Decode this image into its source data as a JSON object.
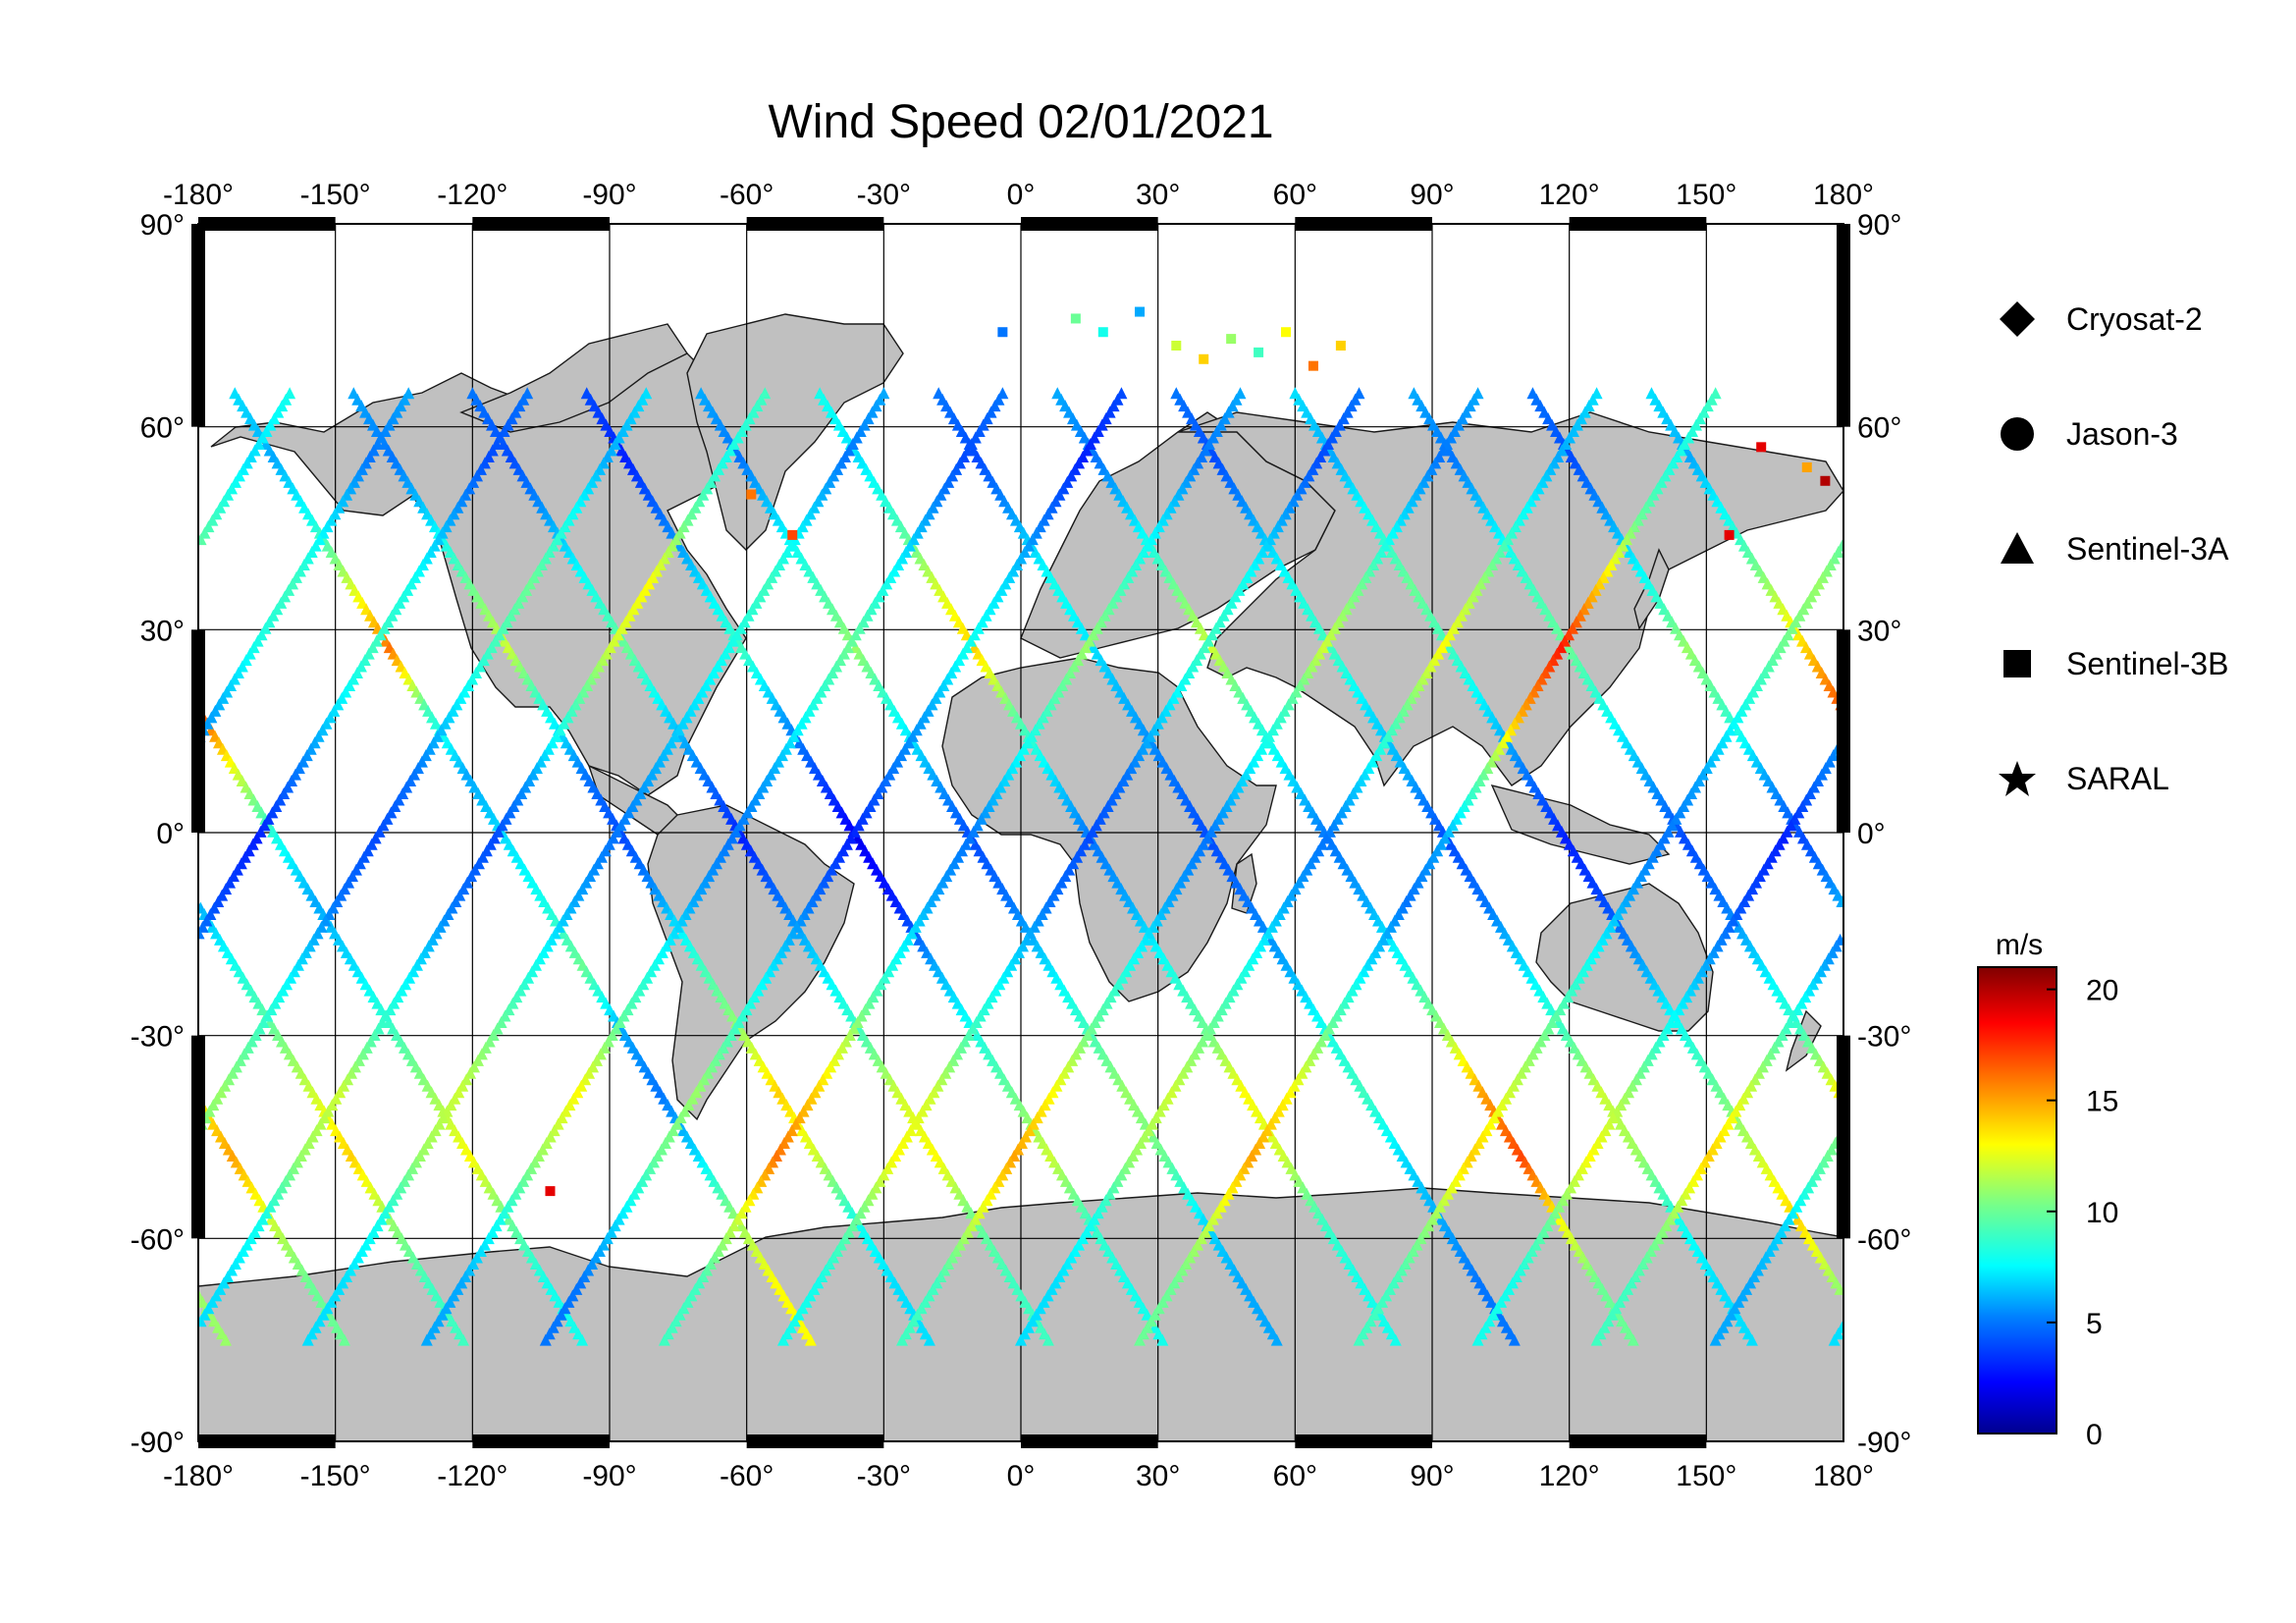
{
  "title": "Wind Speed 02/01/2021",
  "map": {
    "projection": "equirectangular",
    "lon_ticks": [
      "-180°",
      "-150°",
      "-120°",
      "-90°",
      "-60°",
      "-30°",
      "0°",
      "30°",
      "60°",
      "90°",
      "120°",
      "150°",
      "180°"
    ],
    "lat_ticks": [
      "90°",
      "60°",
      "30°",
      "0°",
      "-30°",
      "-60°",
      "-90°"
    ],
    "land_color": "#c0c0c0",
    "ocean_color": "#ffffff",
    "grid": true
  },
  "legend": {
    "items": [
      {
        "label": "Cryosat-2",
        "symbol": "diamond-icon"
      },
      {
        "label": "Jason-3",
        "symbol": "circle-icon"
      },
      {
        "label": "Sentinel-3A",
        "symbol": "triangle-icon"
      },
      {
        "label": "Sentinel-3B",
        "symbol": "square-icon"
      },
      {
        "label": "SARAL",
        "symbol": "star-icon"
      }
    ]
  },
  "colorbar": {
    "unit": "m/s",
    "min": 0,
    "max": 21,
    "ticks": [
      "20",
      "15",
      "10",
      "5",
      "0"
    ],
    "colormap": "jet",
    "colors": [
      "#00008f",
      "#0000ff",
      "#0080ff",
      "#00ffff",
      "#80ff80",
      "#ffff00",
      "#ff8000",
      "#ff0000",
      "#800000"
    ]
  },
  "chart_data": {
    "type": "scatter",
    "title": "Wind Speed 02/01/2021",
    "xlim": [
      -180,
      180
    ],
    "ylim": [
      -90,
      90
    ],
    "value_unit": "m/s",
    "series": [
      {
        "name": "Sentinel-3A",
        "marker": "triangle",
        "tracks": [
          {
            "lon0": -172,
            "dir": 1,
            "values": [
              7,
              6,
              8,
              12,
              16,
              9,
              6,
              7,
              8,
              10,
              6,
              5,
              7,
              11,
              13
            ]
          },
          {
            "lon0": -146,
            "dir": 1,
            "values": [
              6,
              5,
              7,
              10,
              12,
              8,
              5,
              4,
              6,
              9,
              11,
              14,
              12,
              8,
              7
            ]
          },
          {
            "lon0": -120,
            "dir": 1,
            "values": [
              5,
              4,
              6,
              8,
              10,
              7,
              5,
              3,
              5,
              7,
              9,
              12,
              13,
              10,
              9
            ]
          },
          {
            "lon0": -95,
            "dir": 1,
            "values": [
              4,
              3,
              5,
              7,
              9,
              6,
              4,
              2,
              3,
              6,
              8,
              10,
              12,
              9,
              8
            ]
          },
          {
            "lon0": -70,
            "dir": 1,
            "values": [
              6,
              5,
              7,
              9,
              11,
              8,
              6,
              4,
              5,
              7,
              9,
              11,
              10,
              7,
              6
            ]
          },
          {
            "lon0": -44,
            "dir": 1,
            "values": [
              8,
              7,
              9,
              12,
              14,
              10,
              7,
              5,
              6,
              8,
              10,
              13,
              12,
              9,
              8
            ]
          },
          {
            "lon0": -18,
            "dir": 1,
            "values": [
              5,
              4,
              6,
              8,
              7,
              6,
              5,
              4,
              5,
              6,
              8,
              9,
              7,
              6,
              5
            ]
          },
          {
            "lon0": 8,
            "dir": 1,
            "values": [
              6,
              5,
              7,
              10,
              12,
              9,
              7,
              5,
              6,
              8,
              11,
              15,
              17,
              13,
              10
            ]
          },
          {
            "lon0": 34,
            "dir": 1,
            "values": [
              5,
              4,
              6,
              8,
              9,
              7,
              6,
              4,
              5,
              7,
              9,
              12,
              11,
              8,
              7
            ]
          },
          {
            "lon0": 60,
            "dir": 1,
            "values": [
              7,
              6,
              8,
              10,
              9,
              7,
              5,
              3,
              4,
              6,
              8,
              10,
              12,
              14,
              11
            ]
          },
          {
            "lon0": 86,
            "dir": 1,
            "values": [
              6,
              5,
              7,
              9,
              10,
              8,
              6,
              4,
              5,
              7,
              9,
              13,
              15,
              12,
              10
            ]
          },
          {
            "lon0": 112,
            "dir": 1,
            "values": [
              5,
              4,
              6,
              8,
              11,
              9,
              6,
              4,
              6,
              8,
              10,
              12,
              14,
              11,
              9
            ]
          },
          {
            "lon0": 138,
            "dir": 1,
            "values": [
              7,
              6,
              8,
              11,
              14,
              17,
              12,
              8,
              6,
              7,
              9,
              11,
              13,
              10,
              8
            ]
          },
          {
            "lon0": -160,
            "dir": -1,
            "values": [
              8,
              7,
              9,
              11,
              10,
              8,
              6,
              5,
              6,
              8,
              10,
              12,
              14,
              11,
              9
            ]
          },
          {
            "lon0": -134,
            "dir": -1,
            "values": [
              6,
              5,
              7,
              9,
              8,
              6,
              5,
              3,
              4,
              6,
              8,
              11,
              13,
              10,
              8
            ]
          },
          {
            "lon0": -108,
            "dir": -1,
            "values": [
              5,
              4,
              6,
              8,
              9,
              7,
              5,
              3,
              4,
              6,
              9,
              12,
              14,
              11,
              9
            ]
          },
          {
            "lon0": -82,
            "dir": -1,
            "values": [
              7,
              6,
              8,
              10,
              9,
              7,
              5,
              4,
              5,
              7,
              9,
              11,
              10,
              7,
              6
            ]
          },
          {
            "lon0": -56,
            "dir": -1,
            "values": [
              9,
              8,
              10,
              13,
              12,
              9,
              6,
              4,
              5,
              7,
              9,
              12,
              11,
              8,
              7
            ]
          },
          {
            "lon0": -30,
            "dir": -1,
            "values": [
              6,
              5,
              7,
              9,
              8,
              7,
              6,
              5,
              6,
              8,
              10,
              12,
              11,
              8,
              7
            ]
          },
          {
            "lon0": -4,
            "dir": -1,
            "values": [
              5,
              4,
              6,
              8,
              10,
              8,
              6,
              5,
              6,
              8,
              10,
              13,
              11,
              8,
              6
            ]
          },
          {
            "lon0": 22,
            "dir": -1,
            "values": [
              4,
              3,
              5,
              7,
              8,
              6,
              5,
              3,
              5,
              7,
              9,
              11,
              10,
              7,
              5
            ]
          },
          {
            "lon0": 48,
            "dir": -1,
            "values": [
              6,
              5,
              7,
              9,
              11,
              9,
              7,
              5,
              6,
              8,
              11,
              14,
              16,
              12,
              9
            ]
          },
          {
            "lon0": 74,
            "dir": -1,
            "values": [
              5,
              4,
              6,
              8,
              9,
              7,
              5,
              4,
              5,
              7,
              9,
              12,
              13,
              10,
              8
            ]
          },
          {
            "lon0": 100,
            "dir": -1,
            "values": [
              6,
              5,
              7,
              10,
              12,
              9,
              7,
              5,
              6,
              8,
              10,
              13,
              15,
              12,
              9
            ]
          },
          {
            "lon0": 126,
            "dir": -1,
            "values": [
              7,
              6,
              8,
              11,
              13,
              10,
              7,
              5,
              6,
              8,
              10,
              12,
              11,
              8,
              7
            ]
          },
          {
            "lon0": 152,
            "dir": -1,
            "values": [
              9,
              8,
              10,
              14,
              18,
              15,
              10,
              6,
              5,
              7,
              10,
              13,
              15,
              12,
              10
            ]
          }
        ]
      },
      {
        "name": "Sentinel-3B",
        "marker": "square",
        "points": [
          {
            "lon": 12,
            "lat": 76,
            "v": 10
          },
          {
            "lon": 18,
            "lat": 74,
            "v": 8
          },
          {
            "lon": 26,
            "lat": 77,
            "v": 6
          },
          {
            "lon": 34,
            "lat": 72,
            "v": 12
          },
          {
            "lon": 40,
            "lat": 70,
            "v": 14
          },
          {
            "lon": 46,
            "lat": 73,
            "v": 11
          },
          {
            "lon": 52,
            "lat": 71,
            "v": 9
          },
          {
            "lon": 58,
            "lat": 74,
            "v": 13
          },
          {
            "lon": 64,
            "lat": 69,
            "v": 16
          },
          {
            "lon": 70,
            "lat": 72,
            "v": 14
          },
          {
            "lon": -4,
            "lat": 74,
            "v": 5
          },
          {
            "lon": 162,
            "lat": 57,
            "v": 19
          },
          {
            "lon": 176,
            "lat": 52,
            "v": 20
          },
          {
            "lon": -103,
            "lat": -53,
            "v": 19
          },
          {
            "lon": -50,
            "lat": 44,
            "v": 17
          },
          {
            "lon": -59,
            "lat": 50,
            "v": 16
          },
          {
            "lon": 155,
            "lat": 44,
            "v": 19
          },
          {
            "lon": 172,
            "lat": 54,
            "v": 15
          }
        ]
      }
    ]
  }
}
